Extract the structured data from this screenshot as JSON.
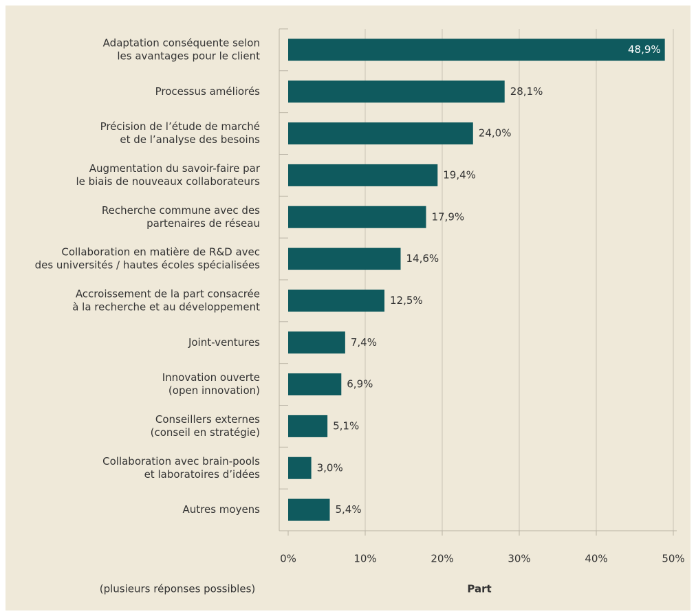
{
  "chart_data": {
    "type": "barh",
    "categories": [
      [
        "Adaptation conséquente selon",
        "les avantages pour le client"
      ],
      [
        "Processus améliorés"
      ],
      [
        "Précision de l’étude de marché",
        "et de l’analyse des besoins"
      ],
      [
        "Augmentation du savoir-faire par",
        "le biais de nouveaux collaborateurs"
      ],
      [
        "Recherche commune avec des",
        "partenaires de réseau"
      ],
      [
        "Collaboration en matière de R&D avec",
        "des universités / hautes écoles spécialisées"
      ],
      [
        "Accroissement de la part consacrée",
        "à la recherche et au développement"
      ],
      [
        "Joint-ventures"
      ],
      [
        "Innovation ouverte",
        "(open innovation)"
      ],
      [
        "Conseillers externes",
        "(conseil en stratégie)"
      ],
      [
        "Collaboration avec brain-pools",
        "et laboratoires d’idées"
      ],
      [
        "Autres moyens"
      ]
    ],
    "values": [
      48.9,
      28.1,
      24.0,
      19.4,
      17.9,
      14.6,
      12.5,
      7.4,
      6.9,
      5.1,
      3.0,
      5.4
    ],
    "value_labels": [
      "48,9%",
      "28,1%",
      "24,0%",
      "19,4%",
      "17,9%",
      "14,6%",
      "12,5%",
      "7,4%",
      "6,9%",
      "5,1%",
      "3,0%",
      "5,4%"
    ],
    "color": "#0f5a5e",
    "xlim": [
      0,
      50
    ],
    "xticks": [
      {
        "value": 0,
        "label": "0%"
      },
      {
        "value": 10,
        "label": "10%"
      },
      {
        "value": 20,
        "label": "20%"
      },
      {
        "value": 30,
        "label": "30%"
      },
      {
        "value": 40,
        "label": "40%"
      },
      {
        "value": 50,
        "label": "50%"
      }
    ],
    "grid": true,
    "xlabel": "Part",
    "note": "(plusieurs réponses possibles)"
  }
}
